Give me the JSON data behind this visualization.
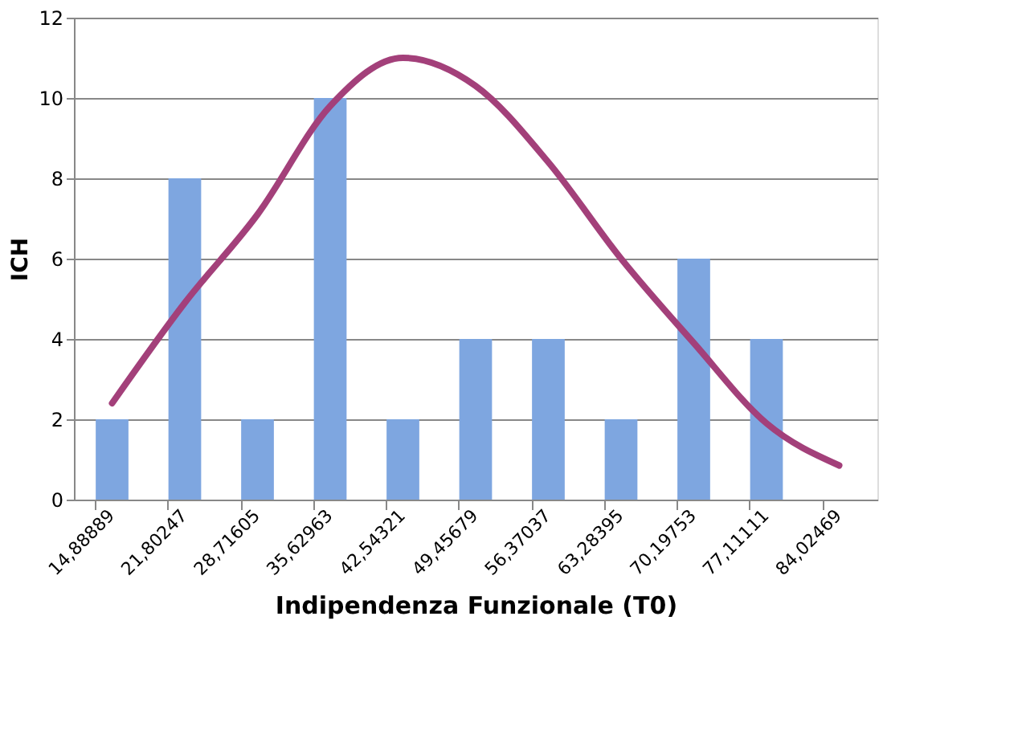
{
  "chart_data": {
    "type": "bar",
    "xlabel": "Indipendenza Funzionale (T0)",
    "ylabel": "ICH",
    "categories": [
      "14,88889",
      "21,80247",
      "28,71605",
      "35,62963",
      "42,54321",
      "49,45679",
      "56,37037",
      "63,28395",
      "70,19753",
      "77,11111",
      "84,02469"
    ],
    "series": [
      {
        "color": "#7ea6e0",
        "values": [
          2,
          8,
          2,
          10,
          2,
          4,
          4,
          2,
          6,
          4,
          0
        ]
      },
      {
        "type": "line",
        "color": "#a3407a",
        "values": [
          2.4,
          4.9,
          7.1,
          9.8,
          11.0,
          10.3,
          8.4,
          6.0,
          3.9,
          1.9,
          0.85
        ]
      }
    ],
    "ylim": [
      0,
      12
    ],
    "yticks": [
      0,
      2,
      4,
      6,
      8,
      10,
      12
    ],
    "grid": "y",
    "legend": false
  }
}
